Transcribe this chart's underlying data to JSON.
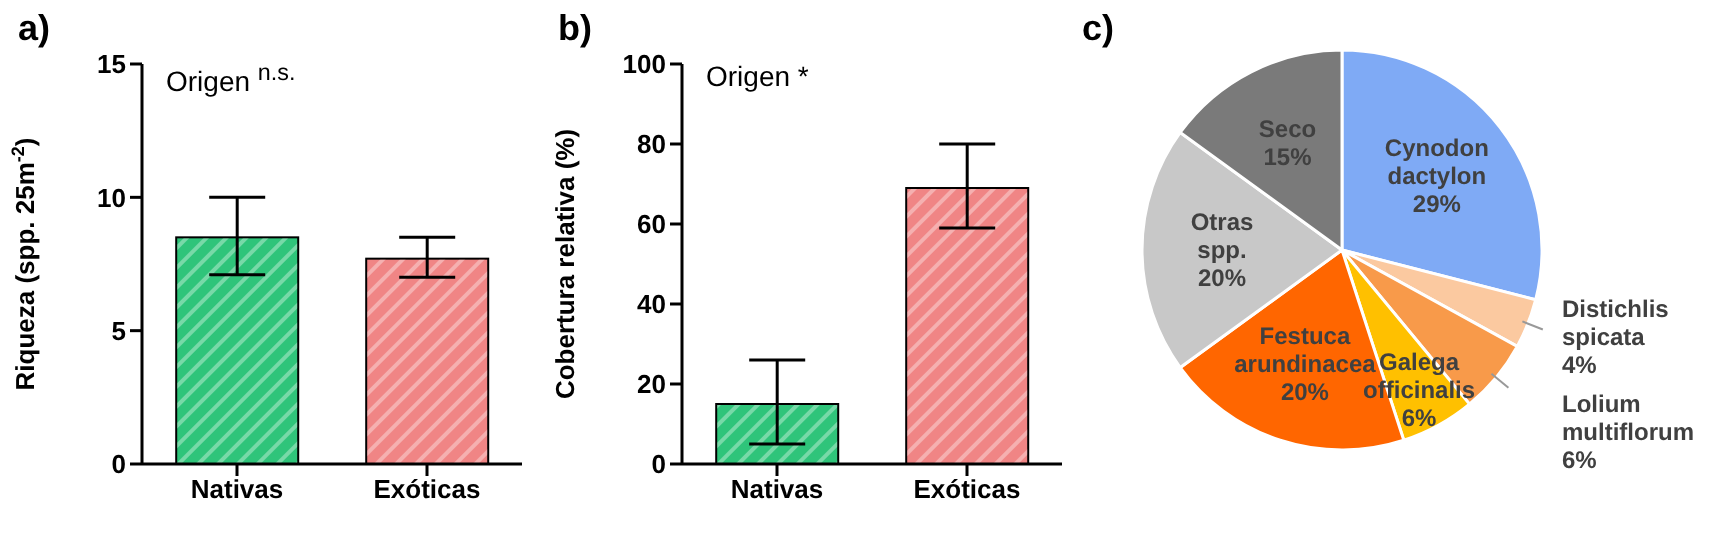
{
  "chart_data": [
    {
      "type": "bar",
      "title": "a)",
      "ylabel": "Riqueza  (spp. 25m$^{-2}$)",
      "categories": [
        "Nativas",
        "Exóticas"
      ],
      "values": [
        8.5,
        7.7
      ],
      "colors": [
        "#2fc47a",
        "#f08585"
      ],
      "errors": [
        [
          7.1,
          10.0
        ],
        [
          7.0,
          8.5
        ]
      ],
      "ylim": [
        0,
        15
      ],
      "yticks": [
        0,
        5,
        10,
        15
      ],
      "annotations": [
        "Origen $^{n.s.}$"
      ]
    },
    {
      "type": "bar",
      "title": "b)",
      "ylabel": "Cobertura relativa (%)",
      "categories": [
        "Nativas",
        "Exóticas"
      ],
      "values": [
        15,
        69
      ],
      "colors": [
        "#2fc47a",
        "#f08585"
      ],
      "errors": [
        [
          5,
          26
        ],
        [
          59,
          80
        ]
      ],
      "ylim": [
        0,
        100
      ],
      "yticks": [
        0,
        20,
        40,
        60,
        80,
        100
      ],
      "annotations": [
        "Origen *"
      ]
    },
    {
      "type": "pie",
      "title": "c)",
      "categories": [
        "Cynodon dactylon",
        "Distichlis spicata",
        "Lolium multiflorum",
        "Galega officinalis",
        "Festuca arundinacea",
        "Otras spp.",
        "Seco"
      ],
      "values": [
        29,
        4,
        6,
        6,
        20,
        20,
        15
      ],
      "value_labels": [
        "29%",
        "4%",
        "6%",
        "6%",
        "20%",
        "20%",
        "15%"
      ],
      "colors": [
        "#7faaf5",
        "#fbc9a0",
        "#f89a4a",
        "#ffc000",
        "#ff6600",
        "#c8c8c8",
        "#7a7a7a"
      ]
    }
  ]
}
